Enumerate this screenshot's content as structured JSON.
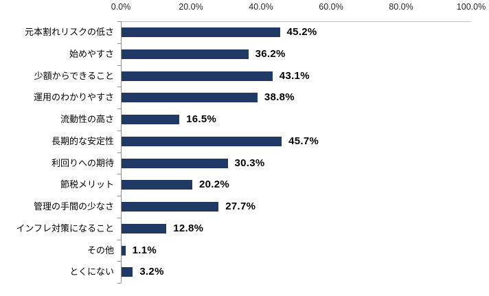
{
  "chart_data": {
    "type": "bar",
    "orientation": "horizontal",
    "title": "",
    "xlabel": "",
    "ylabel": "",
    "categories": [
      "元本割れリスクの低さ",
      "始めやすさ",
      "少額からできること",
      "運用のわかりやすさ",
      "流動性の高さ",
      "長期的な安定性",
      "利回りへの期待",
      "節税メリット",
      "管理の手間の少なさ",
      "インフレ対策になること",
      "その他",
      "とくにない"
    ],
    "values": [
      45.2,
      36.2,
      43.1,
      38.8,
      16.5,
      45.7,
      30.3,
      20.2,
      27.7,
      12.8,
      1.1,
      3.2
    ],
    "value_labels": [
      "45.2%",
      "36.2%",
      "43.1%",
      "38.8%",
      "16.5%",
      "45.7%",
      "30.3%",
      "20.2%",
      "27.7%",
      "12.8%",
      "1.1%",
      "3.2%"
    ],
    "x_tick_labels": [
      "0.0%",
      "20.0%",
      "40.0%",
      "60.0%",
      "80.0%",
      "100.0%"
    ],
    "xlim": [
      0,
      100
    ],
    "grid": "off",
    "legend": "none",
    "bar_color": "#1f3864",
    "axis_line_color": "#8c8c8c",
    "plot_border_color": "#bfbfbf"
  }
}
